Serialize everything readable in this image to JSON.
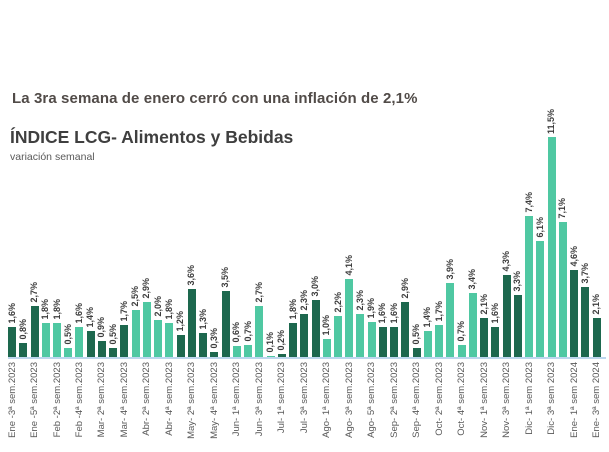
{
  "page": {
    "headline": "La 3ra semana de enero cerró con una inflación de 2,1%",
    "title": "ÍNDICE LCG- Alimentos y Bebidas",
    "subtitle": "variación semanal"
  },
  "chart_data": {
    "type": "bar",
    "title": "ÍNDICE LCG- Alimentos y Bebidas",
    "subtitle": "variación semanal",
    "xlabel": "",
    "ylabel": "variación semanal (%)",
    "unit": "%",
    "ylim": [
      0,
      12
    ],
    "grid": false,
    "legend": false,
    "colors": {
      "dark_green": "#1d684e",
      "light_green": "#4fc8a2",
      "axis_line": "#bdd7ee",
      "value_label": "#3c3c3c",
      "tick_label": "#595959"
    },
    "color_rule": "bars alternate color by month group",
    "bars": [
      {
        "value": 1.6,
        "label": "1,6%",
        "shade": "dark",
        "tick": "Ene -3ª sem.2023"
      },
      {
        "value": 0.8,
        "label": "0,8%",
        "shade": "dark",
        "tick": null
      },
      {
        "value": 2.7,
        "label": "2,7%",
        "shade": "dark",
        "tick": "Ene -5ª sem.2023"
      },
      {
        "value": 1.8,
        "label": "1,8%",
        "shade": "light",
        "tick": null
      },
      {
        "value": 1.8,
        "label": "1,8%",
        "shade": "light",
        "tick": "Feb -2ª sem.2023"
      },
      {
        "value": 0.5,
        "label": "0,5%",
        "shade": "light",
        "tick": null
      },
      {
        "value": 1.6,
        "label": "1,6%",
        "shade": "light",
        "tick": "Feb -4ª sem.2023"
      },
      {
        "value": 1.4,
        "label": "1,4%",
        "shade": "dark",
        "tick": null
      },
      {
        "value": 0.9,
        "label": "0,9%",
        "shade": "dark",
        "tick": "Mar- 2ª sem.2023"
      },
      {
        "value": 0.5,
        "label": "0,5%",
        "shade": "dark",
        "tick": null
      },
      {
        "value": 1.7,
        "label": "1,7%",
        "shade": "dark",
        "tick": "Mar- 4ª sem.2023"
      },
      {
        "value": 2.5,
        "label": "2,5%",
        "shade": "light",
        "tick": null
      },
      {
        "value": 2.9,
        "label": "2,9%",
        "shade": "light",
        "tick": "Abr- 2ª sem.2023"
      },
      {
        "value": 2.0,
        "label": "2,0%",
        "shade": "light",
        "tick": null
      },
      {
        "value": 1.8,
        "label": "1,8%",
        "shade": "light",
        "tick": "Abr- 4ª sem.2023"
      },
      {
        "value": 1.2,
        "label": "1,2%",
        "shade": "dark",
        "tick": null
      },
      {
        "value": 3.6,
        "label": "3,6%",
        "shade": "dark",
        "tick": "May- 2ª sem.2023"
      },
      {
        "value": 1.3,
        "label": "1,3%",
        "shade": "dark",
        "tick": null
      },
      {
        "value": 0.3,
        "label": "0,3%",
        "shade": "dark",
        "tick": "May- 4ª sem.2023"
      },
      {
        "value": 3.5,
        "label": "3,5%",
        "shade": "dark",
        "tick": null
      },
      {
        "value": 0.6,
        "label": "0,6%",
        "shade": "light",
        "tick": "Jun- 1ª sem.2023"
      },
      {
        "value": 0.7,
        "label": "0,7%",
        "shade": "light",
        "tick": null
      },
      {
        "value": 2.7,
        "label": "2,7%",
        "shade": "light",
        "tick": "Jun- 3ª sem.2023"
      },
      {
        "value": 0.1,
        "label": "0,1%",
        "shade": "light",
        "tick": null
      },
      {
        "value": 0.2,
        "label": "0,2%",
        "shade": "dark",
        "tick": "Jul- 1ª sem.2023"
      },
      {
        "value": 1.8,
        "label": "1,8%",
        "shade": "dark",
        "tick": null
      },
      {
        "value": 2.3,
        "label": "2,3%",
        "shade": "dark",
        "tick": "Jul- 3ª sem.2023"
      },
      {
        "value": 3.0,
        "label": "3,0%",
        "shade": "dark",
        "tick": null
      },
      {
        "value": 1.0,
        "label": "1,0%",
        "shade": "light",
        "tick": "Ago- 1ª sem.2023"
      },
      {
        "value": 2.2,
        "label": "2,2%",
        "shade": "light",
        "tick": null
      },
      {
        "value": 4.1,
        "label": "4,1%",
        "shade": "light",
        "tick": "Ago- 3ª sem.2023"
      },
      {
        "value": 2.3,
        "label": "2,3%",
        "shade": "light",
        "tick": null
      },
      {
        "value": 1.9,
        "label": "1,9%",
        "shade": "light",
        "tick": "Ago- 5ª sem.2023"
      },
      {
        "value": 1.6,
        "label": "1,6%",
        "shade": "dark",
        "tick": null
      },
      {
        "value": 1.6,
        "label": "1,6%",
        "shade": "dark",
        "tick": "Sep- 2ª sem.2023"
      },
      {
        "value": 2.9,
        "label": "2,9%",
        "shade": "dark",
        "tick": null
      },
      {
        "value": 0.5,
        "label": "0,5%",
        "shade": "dark",
        "tick": "Sep- 4ª sem.2023"
      },
      {
        "value": 1.4,
        "label": "1,4%",
        "shade": "light",
        "tick": null
      },
      {
        "value": 1.7,
        "label": "1,7%",
        "shade": "light",
        "tick": "Oct- 2ª sem.2023"
      },
      {
        "value": 3.9,
        "label": "3,9%",
        "shade": "light",
        "tick": null
      },
      {
        "value": 0.7,
        "label": "0,7%",
        "shade": "light",
        "tick": "Oct- 4ª sem.2023"
      },
      {
        "value": 3.4,
        "label": "3,4%",
        "shade": "light",
        "tick": null
      },
      {
        "value": 2.1,
        "label": "2,1%",
        "shade": "dark",
        "tick": "Nov- 1ª sem.2023"
      },
      {
        "value": 1.6,
        "label": "1,6%",
        "shade": "dark",
        "tick": null
      },
      {
        "value": 4.3,
        "label": "4,3%",
        "shade": "dark",
        "tick": "Nov- 3ª sem.2023"
      },
      {
        "value": 3.3,
        "label": "3,3%",
        "shade": "dark",
        "tick": null
      },
      {
        "value": 7.4,
        "label": "7,4%",
        "shade": "light",
        "tick": "Dic- 1ª sem 2023"
      },
      {
        "value": 6.1,
        "label": "6,1%",
        "shade": "light",
        "tick": null
      },
      {
        "value": 11.5,
        "label": "11,5%",
        "shade": "light",
        "tick": "Dic- 3ª sem 2023"
      },
      {
        "value": 7.1,
        "label": "7,1%",
        "shade": "light",
        "tick": null
      },
      {
        "value": 4.6,
        "label": "4,6%",
        "shade": "dark",
        "tick": "Ene- 1ª sem 2024"
      },
      {
        "value": 3.7,
        "label": "3,7%",
        "shade": "dark",
        "tick": null
      },
      {
        "value": 2.1,
        "label": "2,1%",
        "shade": "dark",
        "tick": "Ene- 3ª sem 2024"
      }
    ]
  }
}
